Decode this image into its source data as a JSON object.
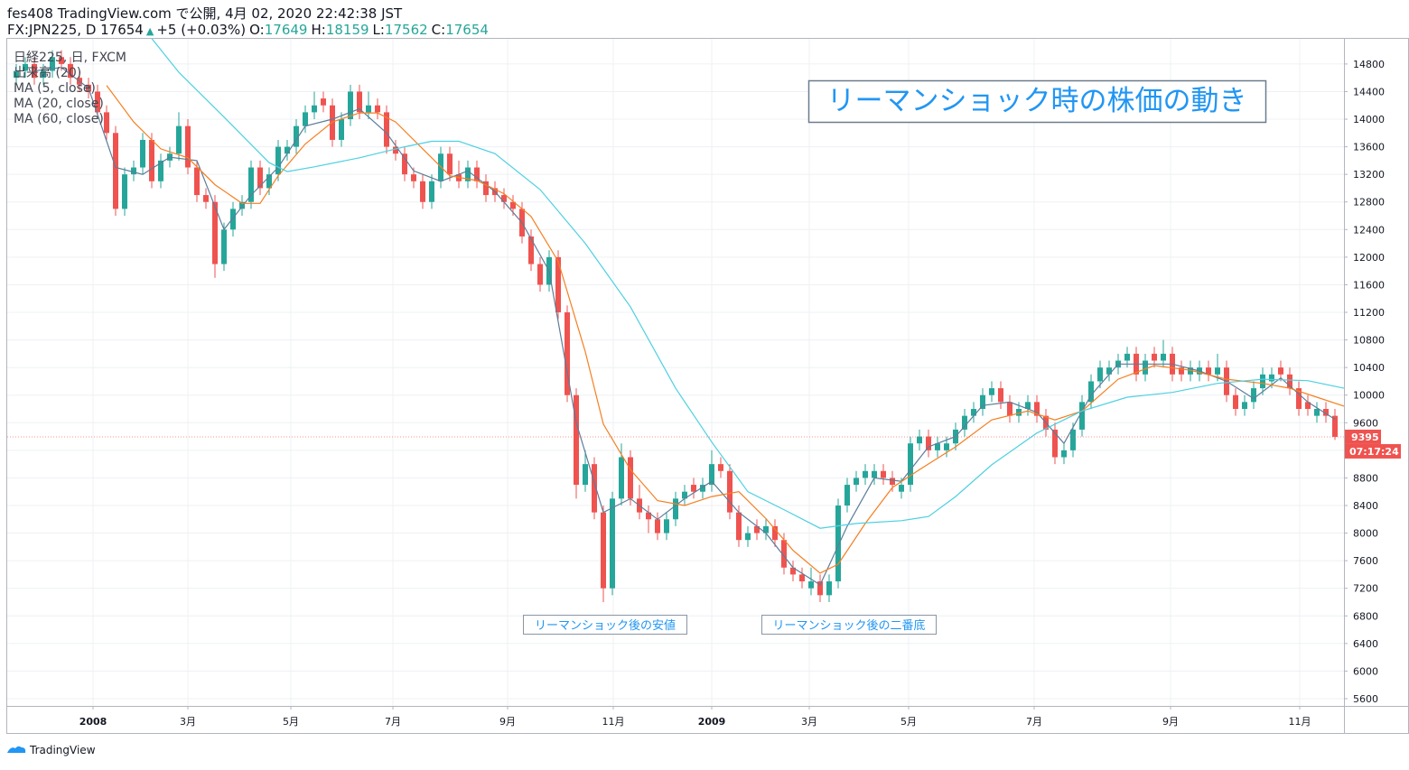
{
  "header": {
    "publisher": "fes408 TradingView.com で公開, 4月 02, 2020 22:42:38 JST",
    "symbol": "FX:JPN225, D 17654",
    "arrow": "▲",
    "change": "+5 (+0.03%)",
    "o_label": "O:",
    "o": "17649",
    "h_label": "H:",
    "h": "18159",
    "l_label": "L:",
    "l": "17562",
    "c_label": "C:",
    "c": "17654"
  },
  "legend_lines": [
    "日経225, 日, FXCM",
    "出来高 (20)"
  ],
  "footer": "TradingView",
  "chart_data": {
    "type": "candlestick",
    "title": "リーマンショック時の株価の動き",
    "annotations": [
      "リーマンショック後の安値",
      "リーマンショック後の二番底"
    ],
    "last_price": 9395,
    "countdown": "07:17:24",
    "up_color": "#26a69a",
    "down_color": "#ef5350",
    "grid": true,
    "xlim": [
      0,
      148
    ],
    "ylim": [
      5495,
      15178
    ],
    "yticks": [
      5600,
      6000,
      6400,
      6800,
      7200,
      7600,
      8000,
      8400,
      8800,
      9200,
      9600,
      10000,
      10400,
      10800,
      11200,
      11600,
      12000,
      12400,
      12800,
      13200,
      13600,
      14000,
      14400,
      14800
    ],
    "xticks": [
      {
        "value": 9.5,
        "label": "2008"
      },
      {
        "value": 20,
        "label": "3月"
      },
      {
        "value": 31.4,
        "label": "5月"
      },
      {
        "value": 42.7,
        "label": "7月"
      },
      {
        "value": 55.4,
        "label": "9月"
      },
      {
        "value": 67.1,
        "label": "11月"
      },
      {
        "value": 78,
        "label": "2009"
      },
      {
        "value": 88.8,
        "label": "3月"
      },
      {
        "value": 99.8,
        "label": "5月"
      },
      {
        "value": 113.7,
        "label": "7月"
      },
      {
        "value": 128.8,
        "label": "9月"
      },
      {
        "value": 143.1,
        "label": "11月"
      }
    ],
    "candles": [
      [
        14600,
        14800,
        14500,
        14700
      ],
      [
        14700,
        14900,
        14600,
        14800
      ],
      [
        14800,
        14900,
        14500,
        14600
      ],
      [
        14600,
        14800,
        14500,
        14700
      ],
      [
        14700,
        15000,
        14600,
        14900
      ],
      [
        14900,
        15000,
        14700,
        14800
      ],
      [
        14800,
        14900,
        14500,
        14600
      ],
      [
        14600,
        14700,
        14400,
        14500
      ],
      [
        14500,
        14600,
        14300,
        14400
      ],
      [
        14400,
        14500,
        14000,
        14100
      ],
      [
        14100,
        14200,
        13700,
        13800
      ],
      [
        13800,
        13900,
        12600,
        12700
      ],
      [
        12700,
        13300,
        12600,
        13200
      ],
      [
        13200,
        13400,
        13100,
        13300
      ],
      [
        13300,
        13800,
        13200,
        13700
      ],
      [
        13700,
        13800,
        13000,
        13100
      ],
      [
        13100,
        13500,
        13000,
        13400
      ],
      [
        13400,
        13600,
        13300,
        13500
      ],
      [
        13500,
        14100,
        13400,
        13900
      ],
      [
        13900,
        14000,
        13200,
        13300
      ],
      [
        13300,
        13400,
        12800,
        12900
      ],
      [
        12900,
        13000,
        12700,
        12800
      ],
      [
        12800,
        12900,
        11700,
        11900
      ],
      [
        11900,
        12500,
        11800,
        12400
      ],
      [
        12400,
        12800,
        12300,
        12700
      ],
      [
        12700,
        12900,
        12600,
        12800
      ],
      [
        12800,
        13400,
        12700,
        13300
      ],
      [
        13300,
        13400,
        12900,
        13000
      ],
      [
        13000,
        13300,
        12900,
        13200
      ],
      [
        13200,
        13700,
        13100,
        13600
      ],
      [
        13500,
        13700,
        13400,
        13600
      ],
      [
        13600,
        14000,
        13500,
        13900
      ],
      [
        13900,
        14200,
        13800,
        14100
      ],
      [
        14100,
        14400,
        14000,
        14200
      ],
      [
        14300,
        14400,
        14100,
        14200
      ],
      [
        14200,
        14300,
        13600,
        13700
      ],
      [
        13700,
        14100,
        13600,
        14000
      ],
      [
        14000,
        14500,
        13900,
        14400
      ],
      [
        14400,
        14500,
        14000,
        14100
      ],
      [
        14100,
        14400,
        14000,
        14200
      ],
      [
        14200,
        14300,
        14000,
        14100
      ],
      [
        14100,
        14200,
        13500,
        13600
      ],
      [
        13600,
        13700,
        13400,
        13500
      ],
      [
        13500,
        13600,
        13100,
        13200
      ],
      [
        13200,
        13300,
        13000,
        13100
      ],
      [
        13100,
        13200,
        12700,
        12800
      ],
      [
        12800,
        13200,
        12700,
        13100
      ],
      [
        13100,
        13600,
        13000,
        13500
      ],
      [
        13500,
        13600,
        13100,
        13200
      ],
      [
        13200,
        13400,
        13000,
        13100
      ],
      [
        13100,
        13400,
        13000,
        13300
      ],
      [
        13300,
        13400,
        13000,
        13100
      ],
      [
        13100,
        13200,
        12800,
        12900
      ],
      [
        13000,
        13100,
        12800,
        12900
      ],
      [
        12900,
        13000,
        12700,
        12800
      ],
      [
        12800,
        12900,
        12600,
        12700
      ],
      [
        12700,
        12800,
        12200,
        12300
      ],
      [
        12300,
        12400,
        11800,
        11900
      ],
      [
        11900,
        12000,
        11500,
        11600
      ],
      [
        11600,
        12100,
        11500,
        12000
      ],
      [
        12000,
        12100,
        11100,
        11200
      ],
      [
        11200,
        11300,
        9900,
        10000
      ],
      [
        10000,
        10100,
        8500,
        8700
      ],
      [
        8700,
        9200,
        8600,
        9000
      ],
      [
        9000,
        9100,
        8200,
        8300
      ],
      [
        8300,
        8400,
        7000,
        7200
      ],
      [
        7200,
        8600,
        7100,
        8500
      ],
      [
        8500,
        9300,
        8400,
        9100
      ],
      [
        9100,
        9200,
        8400,
        8500
      ],
      [
        8500,
        8700,
        8200,
        8300
      ],
      [
        8300,
        8400,
        8000,
        8200
      ],
      [
        8200,
        8300,
        7900,
        8000
      ],
      [
        8000,
        8300,
        7900,
        8200
      ],
      [
        8200,
        8600,
        8100,
        8500
      ],
      [
        8500,
        8700,
        8400,
        8600
      ],
      [
        8700,
        8800,
        8500,
        8600
      ],
      [
        8600,
        8800,
        8500,
        8700
      ],
      [
        8700,
        9200,
        8600,
        9000
      ],
      [
        9000,
        9100,
        8800,
        8900
      ],
      [
        8900,
        9000,
        8200,
        8300
      ],
      [
        8300,
        8400,
        7800,
        7900
      ],
      [
        7900,
        8100,
        7800,
        8000
      ],
      [
        8100,
        8200,
        7900,
        8000
      ],
      [
        8000,
        8200,
        7900,
        8100
      ],
      [
        8100,
        8200,
        7800,
        7900
      ],
      [
        7900,
        8000,
        7400,
        7500
      ],
      [
        7500,
        7600,
        7300,
        7400
      ],
      [
        7400,
        7500,
        7200,
        7300
      ],
      [
        7200,
        7500,
        7100,
        7300
      ],
      [
        7300,
        7400,
        7000,
        7100
      ],
      [
        7100,
        7400,
        7000,
        7300
      ],
      [
        7300,
        8500,
        7200,
        8400
      ],
      [
        8400,
        8800,
        8300,
        8700
      ],
      [
        8700,
        8900,
        8600,
        8800
      ],
      [
        8800,
        9000,
        8700,
        8900
      ],
      [
        8800,
        9000,
        8700,
        8900
      ],
      [
        8900,
        9000,
        8700,
        8800
      ],
      [
        8800,
        8900,
        8600,
        8700
      ],
      [
        8600,
        8800,
        8500,
        8700
      ],
      [
        8700,
        9400,
        8600,
        9300
      ],
      [
        9300,
        9500,
        9200,
        9400
      ],
      [
        9400,
        9500,
        9100,
        9200
      ],
      [
        9200,
        9400,
        9100,
        9300
      ],
      [
        9200,
        9400,
        9100,
        9300
      ],
      [
        9300,
        9600,
        9200,
        9500
      ],
      [
        9500,
        9800,
        9400,
        9700
      ],
      [
        9700,
        9900,
        9600,
        9800
      ],
      [
        9800,
        10100,
        9700,
        10000
      ],
      [
        10000,
        10200,
        9900,
        10100
      ],
      [
        10100,
        10200,
        9800,
        9900
      ],
      [
        9900,
        10000,
        9600,
        9700
      ],
      [
        9700,
        9900,
        9600,
        9800
      ],
      [
        9800,
        10000,
        9700,
        9900
      ],
      [
        9900,
        10000,
        9600,
        9700
      ],
      [
        9700,
        9800,
        9400,
        9500
      ],
      [
        9500,
        9600,
        9000,
        9100
      ],
      [
        9100,
        9300,
        9000,
        9200
      ],
      [
        9200,
        9600,
        9100,
        9500
      ],
      [
        9500,
        10000,
        9400,
        9900
      ],
      [
        9900,
        10300,
        9800,
        10200
      ],
      [
        10200,
        10500,
        10100,
        10400
      ],
      [
        10300,
        10500,
        10200,
        10400
      ],
      [
        10400,
        10600,
        10300,
        10500
      ],
      [
        10500,
        10700,
        10400,
        10600
      ],
      [
        10600,
        10700,
        10200,
        10300
      ],
      [
        10300,
        10600,
        10200,
        10500
      ],
      [
        10600,
        10700,
        10400,
        10500
      ],
      [
        10500,
        10800,
        10400,
        10600
      ],
      [
        10600,
        10700,
        10200,
        10300
      ],
      [
        10400,
        10500,
        10200,
        10300
      ],
      [
        10300,
        10500,
        10200,
        10400
      ],
      [
        10300,
        10500,
        10200,
        10400
      ],
      [
        10400,
        10500,
        10200,
        10300
      ],
      [
        10300,
        10600,
        10200,
        10400
      ],
      [
        10400,
        10500,
        9900,
        10000
      ],
      [
        10000,
        10100,
        9700,
        9800
      ],
      [
        9800,
        10000,
        9700,
        9900
      ],
      [
        9900,
        10200,
        9800,
        10100
      ],
      [
        10100,
        10400,
        10000,
        10300
      ],
      [
        10200,
        10400,
        10100,
        10300
      ],
      [
        10400,
        10500,
        10200,
        10300
      ],
      [
        10300,
        10400,
        10000,
        10100
      ],
      [
        10100,
        10200,
        9700,
        9800
      ],
      [
        9900,
        10000,
        9700,
        9800
      ],
      [
        9700,
        9900,
        9600,
        9800
      ],
      [
        9800,
        9900,
        9600,
        9700
      ],
      [
        9700,
        9800,
        9350,
        9395
      ]
    ],
    "series": [
      {
        "name": "MA (5, close)",
        "color": "#5d7d99",
        "x": [
          3,
          6,
          9,
          12,
          15,
          18,
          21,
          24,
          27,
          30,
          33,
          36,
          39,
          42,
          45,
          48,
          51,
          54,
          57,
          60,
          63,
          66,
          69,
          72,
          75,
          78,
          81,
          84,
          87,
          90,
          93,
          96,
          99,
          102,
          105,
          108,
          111,
          114,
          117,
          120,
          123,
          126,
          129,
          132,
          135,
          138,
          141,
          144,
          147
        ],
        "values": [
          14700,
          14750,
          14450,
          13300,
          13200,
          13450,
          13400,
          12400,
          12900,
          13300,
          13900,
          14000,
          14150,
          13800,
          13250,
          13100,
          13250,
          12950,
          12500,
          11800,
          9600,
          8300,
          8500,
          8200,
          8500,
          8750,
          8300,
          8000,
          7500,
          7250,
          8100,
          8800,
          8750,
          9250,
          9400,
          9850,
          9900,
          9750,
          9300,
          10000,
          10450,
          10450,
          10450,
          10350,
          10200,
          9950,
          10250,
          9900,
          9650
        ]
      },
      {
        "name": "MA (20, close)",
        "color": "#f57f20",
        "x": [
          11,
          14,
          17,
          20,
          23,
          26,
          28,
          30,
          33,
          36,
          39,
          41,
          43,
          46,
          49,
          52,
          55,
          58,
          61,
          64,
          66,
          69,
          72,
          75,
          78,
          81,
          84,
          87,
          90,
          92,
          95,
          98,
          101,
          105,
          109,
          113,
          116,
          119,
          123,
          127,
          131,
          135,
          139,
          142,
          145,
          148
        ],
        "values": [
          14490,
          13960,
          13570,
          13440,
          13050,
          12780,
          12780,
          13180,
          13640,
          13960,
          14090,
          14090,
          13960,
          13570,
          13180,
          13110,
          12920,
          12590,
          11940,
          10630,
          9580,
          8920,
          8470,
          8400,
          8530,
          8600,
          8210,
          7750,
          7420,
          7550,
          8140,
          8660,
          8920,
          9250,
          9640,
          9770,
          9640,
          9770,
          10230,
          10430,
          10360,
          10230,
          10170,
          10100,
          9970,
          9840
        ]
      },
      {
        "name": "MA (60, close)",
        "color": "#4dd0e1",
        "x": [
          16,
          19,
          24,
          29,
          31,
          34,
          39,
          44,
          47,
          50,
          54,
          59,
          64,
          69,
          74,
          78,
          82,
          86,
          90,
          94,
          99,
          102,
          105,
          109,
          114,
          119,
          124,
          129,
          134,
          139,
          144,
          148
        ],
        "values": [
          15170,
          14680,
          14030,
          13370,
          13240,
          13310,
          13440,
          13600,
          13680,
          13680,
          13500,
          12980,
          12200,
          11280,
          10100,
          9320,
          8600,
          8340,
          8070,
          8140,
          8180,
          8240,
          8530,
          8990,
          9450,
          9770,
          9970,
          10040,
          10170,
          10230,
          10210,
          10100
        ]
      }
    ]
  }
}
